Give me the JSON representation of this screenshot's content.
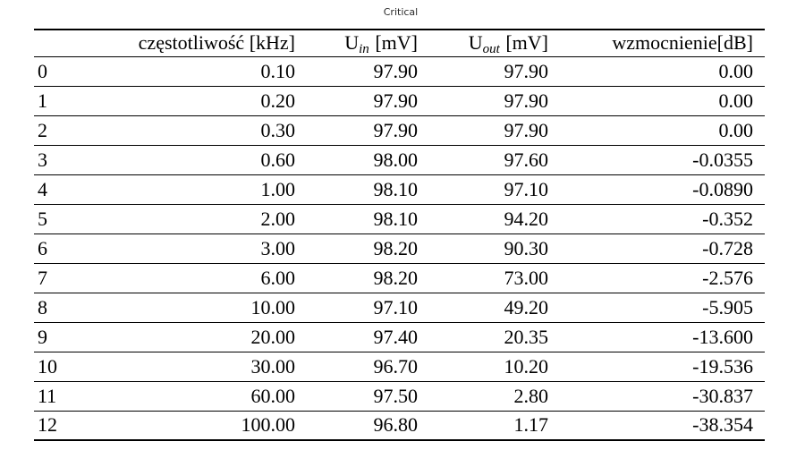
{
  "caption": "Critical",
  "table": {
    "headers": {
      "frequency": "częstotliwość [kHz]",
      "u_in": {
        "base": "U",
        "sub": "in",
        "unit": "[mV]"
      },
      "u_out": {
        "base": "U",
        "sub": "out",
        "unit": "[mV]"
      },
      "gain": "wzmocnienie[dB]"
    },
    "rows": [
      [
        "0",
        "0.10",
        "97.90",
        "97.90",
        "0.00"
      ],
      [
        "1",
        "0.20",
        "97.90",
        "97.90",
        "0.00"
      ],
      [
        "2",
        "0.30",
        "97.90",
        "97.90",
        "0.00"
      ],
      [
        "3",
        "0.60",
        "98.00",
        "97.60",
        "-0.0355"
      ],
      [
        "4",
        "1.00",
        "98.10",
        "97.10",
        "-0.0890"
      ],
      [
        "5",
        "2.00",
        "98.10",
        "94.20",
        "-0.352"
      ],
      [
        "6",
        "3.00",
        "98.20",
        "90.30",
        "-0.728"
      ],
      [
        "7",
        "6.00",
        "98.20",
        "73.00",
        "-2.576"
      ],
      [
        "8",
        "10.00",
        "97.10",
        "49.20",
        "-5.905"
      ],
      [
        "9",
        "20.00",
        "97.40",
        "20.35",
        "-13.600"
      ],
      [
        "10",
        "30.00",
        "96.70",
        "10.20",
        "-19.536"
      ],
      [
        "11",
        "60.00",
        "97.50",
        "2.80",
        "-30.837"
      ],
      [
        "12",
        "100.00",
        "96.80",
        "1.17",
        "-38.354"
      ]
    ]
  }
}
